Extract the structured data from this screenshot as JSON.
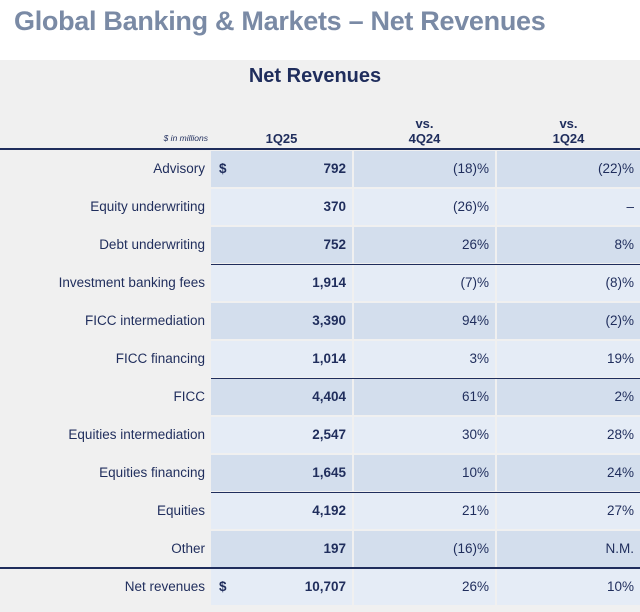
{
  "page_title": "Global Banking & Markets – Net Revenues",
  "table_title": "Net Revenues",
  "header": {
    "units": "$ in millions",
    "col1": "1Q25",
    "col2_line1": "vs.",
    "col2_line2": "4Q24",
    "col3_line1": "vs.",
    "col3_line2": "1Q24"
  },
  "rows": [
    {
      "label": "Advisory",
      "dollar": "$",
      "value": "792",
      "vs_4q24": "(18)%",
      "vs_1q24": "(22)%"
    },
    {
      "label": "Equity underwriting",
      "dollar": "",
      "value": "370",
      "vs_4q24": "(26)%",
      "vs_1q24": "–"
    },
    {
      "label": "Debt underwriting",
      "dollar": "",
      "value": "752",
      "vs_4q24": "26%",
      "vs_1q24": "8%"
    },
    {
      "label": "Investment banking fees",
      "dollar": "",
      "value": "1,914",
      "vs_4q24": "(7)%",
      "vs_1q24": "(8)%"
    },
    {
      "label": "FICC intermediation",
      "dollar": "",
      "value": "3,390",
      "vs_4q24": "94%",
      "vs_1q24": "(2)%"
    },
    {
      "label": "FICC financing",
      "dollar": "",
      "value": "1,014",
      "vs_4q24": "3%",
      "vs_1q24": "19%"
    },
    {
      "label": "FICC",
      "dollar": "",
      "value": "4,404",
      "vs_4q24": "61%",
      "vs_1q24": "2%"
    },
    {
      "label": "Equities intermediation",
      "dollar": "",
      "value": "2,547",
      "vs_4q24": "30%",
      "vs_1q24": "28%"
    },
    {
      "label": "Equities financing",
      "dollar": "",
      "value": "1,645",
      "vs_4q24": "10%",
      "vs_1q24": "24%"
    },
    {
      "label": "Equities",
      "dollar": "",
      "value": "4,192",
      "vs_4q24": "21%",
      "vs_1q24": "27%"
    },
    {
      "label": "Other",
      "dollar": "",
      "value": "197",
      "vs_4q24": "(16)%",
      "vs_1q24": "N.M."
    },
    {
      "label": "Net revenues",
      "dollar": "$",
      "value": "10,707",
      "vs_4q24": "26%",
      "vs_1q24": "10%"
    }
  ],
  "colors": {
    "title": "#7a8aa5",
    "navy": "#1f2d5c",
    "panel_bg": "#f0f0f0",
    "shade_dark": "#d3deed",
    "shade_light": "#e5ecf6"
  }
}
